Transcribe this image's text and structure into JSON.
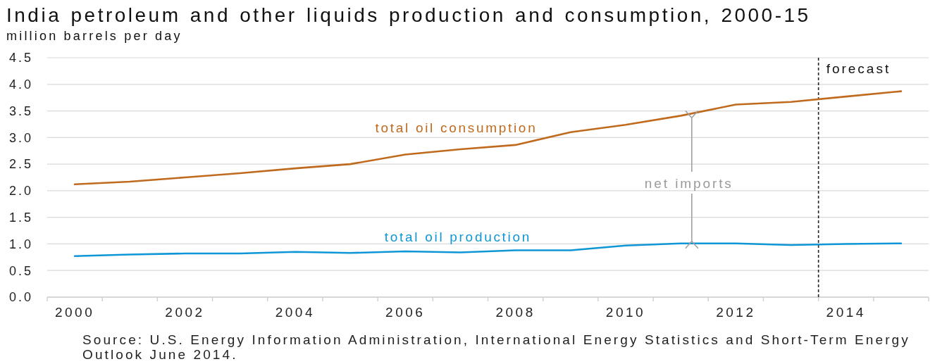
{
  "chart_data": {
    "type": "line",
    "title": "India petroleum and other liquids production and consumption, 2000-15",
    "ylabel": "million barrels per day",
    "x": [
      2000,
      2001,
      2002,
      2003,
      2004,
      2005,
      2006,
      2007,
      2008,
      2009,
      2010,
      2011,
      2012,
      2013,
      2014,
      2015
    ],
    "series": [
      {
        "name": "total oil consumption",
        "color": "#c06a1e",
        "values": [
          2.12,
          2.17,
          2.25,
          2.33,
          2.42,
          2.5,
          2.68,
          2.78,
          2.86,
          3.1,
          3.24,
          3.41,
          3.62,
          3.67,
          3.77,
          3.87
        ]
      },
      {
        "name": "total oil production",
        "color": "#0f96d6",
        "values": [
          0.77,
          0.8,
          0.82,
          0.82,
          0.85,
          0.83,
          0.86,
          0.84,
          0.88,
          0.88,
          0.97,
          1.01,
          1.01,
          0.98,
          1.0,
          1.01
        ]
      }
    ],
    "xlim": [
      1999.5,
      2015.5
    ],
    "xticks": [
      {
        "value": 1999.5,
        "label": null
      },
      2000,
      {
        "value": 2000.5,
        "label": null
      },
      {
        "value": 2001.5,
        "label": null
      },
      2002,
      {
        "value": 2002.5,
        "label": null
      },
      {
        "value": 2003.5,
        "label": null
      },
      2004,
      {
        "value": 2004.5,
        "label": null
      },
      {
        "value": 2005.5,
        "label": null
      },
      2006,
      {
        "value": 2006.5,
        "label": null
      },
      {
        "value": 2007.5,
        "label": null
      },
      2008,
      {
        "value": 2008.5,
        "label": null
      },
      {
        "value": 2009.5,
        "label": null
      },
      2010,
      {
        "value": 2010.5,
        "label": null
      },
      {
        "value": 2011.5,
        "label": null
      },
      2012,
      {
        "value": 2012.5,
        "label": null
      },
      {
        "value": 2013.5,
        "label": null
      },
      2014,
      {
        "value": 2014.5,
        "label": null
      },
      {
        "value": 2015.5,
        "label": null
      }
    ],
    "ylim": [
      0,
      4.5
    ],
    "yticks": [
      {
        "value": 0,
        "label": "0.0"
      },
      {
        "value": 0.5,
        "label": "0.5"
      },
      {
        "value": 1,
        "label": "1.0"
      },
      {
        "value": 1.5,
        "label": "1.5"
      },
      {
        "value": 2,
        "label": "2.0"
      },
      {
        "value": 2.5,
        "label": "2.5"
      },
      {
        "value": 3,
        "label": "3.0"
      },
      {
        "value": 3.5,
        "label": "3.5"
      },
      {
        "value": 4,
        "label": "4.0"
      },
      {
        "value": 4.5,
        "label": "4.5"
      }
    ],
    "grid": "y",
    "legend": false,
    "ref_lines": [
      {
        "axis": "x",
        "value": 2013.5,
        "label": "forecast",
        "color": "#222222",
        "line_style": "dashed"
      }
    ],
    "annotations": [
      {
        "text": "net imports",
        "x": 2011.2,
        "y": 1.01
      },
      "Source: U.S. Energy Information Administration, International Energy Statistics and Short-Term Energy Outlook June 2014."
    ]
  }
}
